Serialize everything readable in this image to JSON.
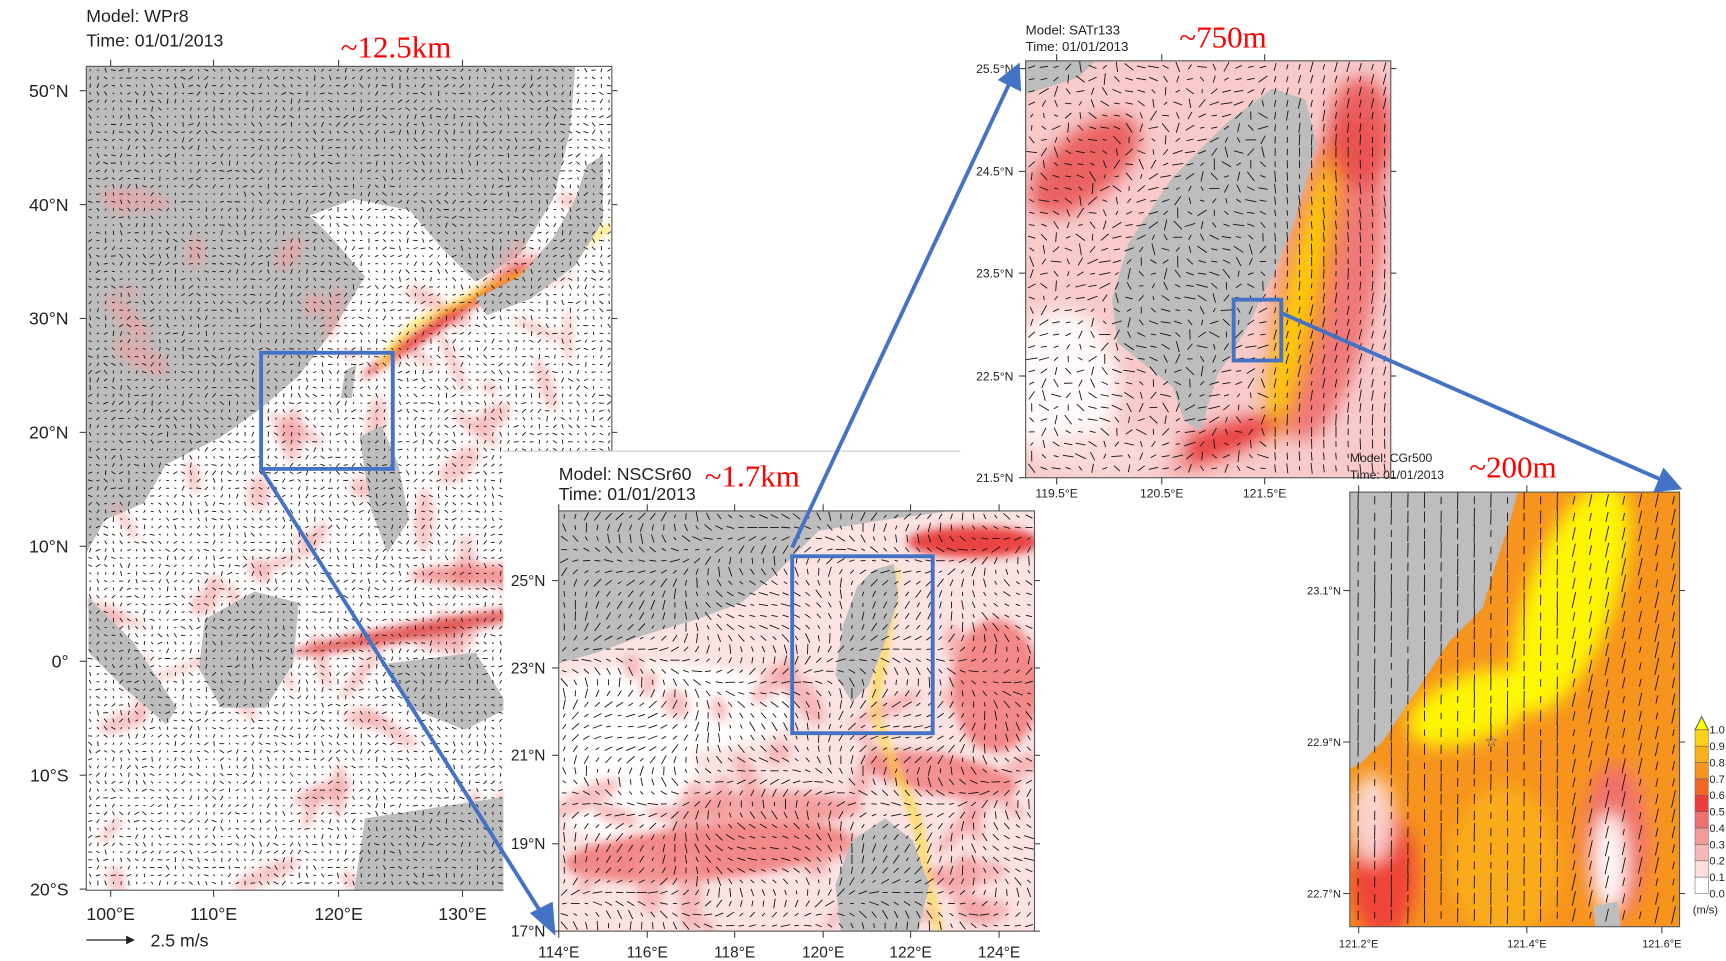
{
  "figure": {
    "panels": [
      {
        "id": "wpr8",
        "model": "Model: WPr8",
        "time": "Time: 01/01/2013",
        "resolution": "~12.5km",
        "lat_ticks": [
          "50°N",
          "40°N",
          "30°N",
          "20°N",
          "10°N",
          "0°",
          "10°S",
          "20°S"
        ],
        "lon_ticks": [
          "100°E",
          "110°E",
          "120°E",
          "130°E"
        ],
        "vector_legend": "2.5 m/s"
      },
      {
        "id": "nscsr60",
        "model": "Model: NSCSr60",
        "time": "Time: 01/01/2013",
        "resolution": "~1.7km",
        "lat_ticks": [
          "25°N",
          "23°N",
          "21°N",
          "19°N",
          "17°N"
        ],
        "lon_ticks": [
          "114°E",
          "116°E",
          "118°E",
          "120°E",
          "122°E",
          "124°E"
        ]
      },
      {
        "id": "satr133",
        "model": "Model: SATr133",
        "time": "Time: 01/01/2013",
        "resolution": "~750m",
        "lat_ticks": [
          "25.5°N",
          "24.5°N",
          "23.5°N",
          "22.5°N",
          "21.5°N"
        ],
        "lon_ticks": [
          "119.5°E",
          "120.5°E",
          "121.5°E"
        ]
      },
      {
        "id": "cgr500",
        "model": "Model: CGr500",
        "time": "Time: 01/01/2013",
        "resolution": "~200m",
        "lat_ticks": [
          "23.1°N",
          "22.9°N",
          "22.7°N"
        ],
        "lon_ticks": [
          "121.2°E",
          "121.4°E",
          "121.6°E"
        ]
      }
    ],
    "colorbar": {
      "labels": [
        "1.0",
        "0.9",
        "0.8",
        "0.7",
        "0.6",
        "0.5",
        "0.4",
        "0.3",
        "0.2",
        "0.1",
        "0.0"
      ],
      "unit": "(m/s)",
      "colors": [
        "#ffff00",
        "#fcd116",
        "#fbb117",
        "#f7941d",
        "#f26522",
        "#ee3a3a",
        "#f07070",
        "#f49a9a",
        "#f8b8b8",
        "#fcdede",
        "#ffffff"
      ]
    },
    "colors": {
      "land": "#bdbdbd",
      "zoom_box": "#4472c4",
      "resolution_text": "#ff0000",
      "marker_star": "#3a3aa0"
    }
  }
}
